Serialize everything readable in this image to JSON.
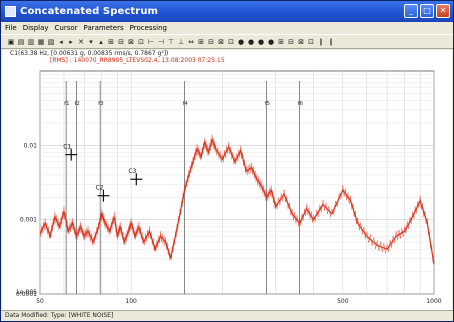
{
  "window": {
    "title": "Concatenated Spectrum"
  },
  "menu": [
    "File",
    "Display",
    "Cursor",
    "Parameters",
    "Processing"
  ],
  "toolbar": [
    "▣",
    "▤",
    "▥",
    "▦",
    "▧",
    "◂",
    "▸",
    "✕",
    "▾",
    "▴",
    "⊞",
    "⊟",
    "⊠",
    "⊡",
    "⊢",
    "⊣",
    "⊤",
    "⊥",
    "⇔",
    "⊞",
    "⊟",
    "⊠",
    "⊡",
    "●",
    "●",
    "●",
    "●",
    "⊞",
    "⊟",
    "⊠",
    "⊡",
    "∥",
    "∥"
  ],
  "info": {
    "line1": "C1(63.38 Hz, [0.00631 g, 0.00835 rms/s, 0.7867 g²])",
    "line2": "[RMS] : 140070_RR8905_LTEVS02.4, 13:08:2003 07:25:15"
  },
  "status": "Data Modified: Type: [WHITE NOISE]",
  "chart_data": {
    "type": "line",
    "xscale": "log",
    "yscale": "log",
    "xlim": [
      50,
      1000
    ],
    "ylim": [
      0.0001,
      0.1
    ],
    "x_ticks": [
      "50",
      "100",
      "500",
      "1000"
    ],
    "y_ticks": [
      "0.01",
      "0.001",
      "0.0001",
      "1e-005"
    ],
    "grid": true,
    "series_color": "#d8321a",
    "markers": [
      {
        "label": "f1",
        "x": 61
      },
      {
        "label": "f2",
        "x": 66
      },
      {
        "label": "f3",
        "x": 79
      },
      {
        "label": "f4",
        "x": 150
      },
      {
        "label": "f5",
        "x": 280
      },
      {
        "label": "f6",
        "x": 360
      }
    ],
    "cursors": [
      {
        "label": "C1",
        "x": 63.4,
        "y": 0.0075
      },
      {
        "label": "C2",
        "x": 81,
        "y": 0.0021
      },
      {
        "label": "C3",
        "x": 104,
        "y": 0.0035
      }
    ],
    "series": [
      {
        "x": [
          50,
          52,
          54,
          56,
          58,
          60,
          62,
          64,
          66,
          68,
          70,
          72,
          75,
          78,
          80,
          82,
          85,
          88,
          90,
          92,
          95,
          98,
          100,
          103,
          106,
          110,
          115,
          120,
          125,
          130,
          135,
          140,
          145,
          150,
          155,
          160,
          165,
          170,
          175,
          180,
          185,
          190,
          200,
          210,
          220,
          230,
          240,
          250,
          260,
          270,
          280,
          290,
          300,
          320,
          340,
          360,
          380,
          400,
          430,
          460,
          500,
          530,
          560,
          600,
          650,
          700,
          750,
          800,
          850,
          900,
          950,
          1000
        ],
        "y": [
          0.00065,
          0.0009,
          0.0006,
          0.0011,
          0.0008,
          0.0013,
          0.0007,
          0.0009,
          0.0006,
          0.0008,
          0.0006,
          0.0007,
          0.0005,
          0.0008,
          0.0012,
          0.0009,
          0.0007,
          0.0011,
          0.0006,
          0.0008,
          0.0005,
          0.0007,
          0.0009,
          0.0006,
          0.0008,
          0.0005,
          0.0007,
          0.0004,
          0.0006,
          0.0005,
          0.0003,
          0.0006,
          0.0012,
          0.0025,
          0.004,
          0.006,
          0.009,
          0.007,
          0.011,
          0.008,
          0.012,
          0.009,
          0.0065,
          0.0095,
          0.006,
          0.0085,
          0.0045,
          0.005,
          0.0035,
          0.0028,
          0.002,
          0.0025,
          0.0015,
          0.0022,
          0.0012,
          0.0009,
          0.0014,
          0.001,
          0.0016,
          0.0012,
          0.0025,
          0.0018,
          0.0009,
          0.0006,
          0.00045,
          0.0004,
          0.0006,
          0.0007,
          0.0011,
          0.0018,
          0.0009,
          0.00025
        ]
      }
    ]
  }
}
